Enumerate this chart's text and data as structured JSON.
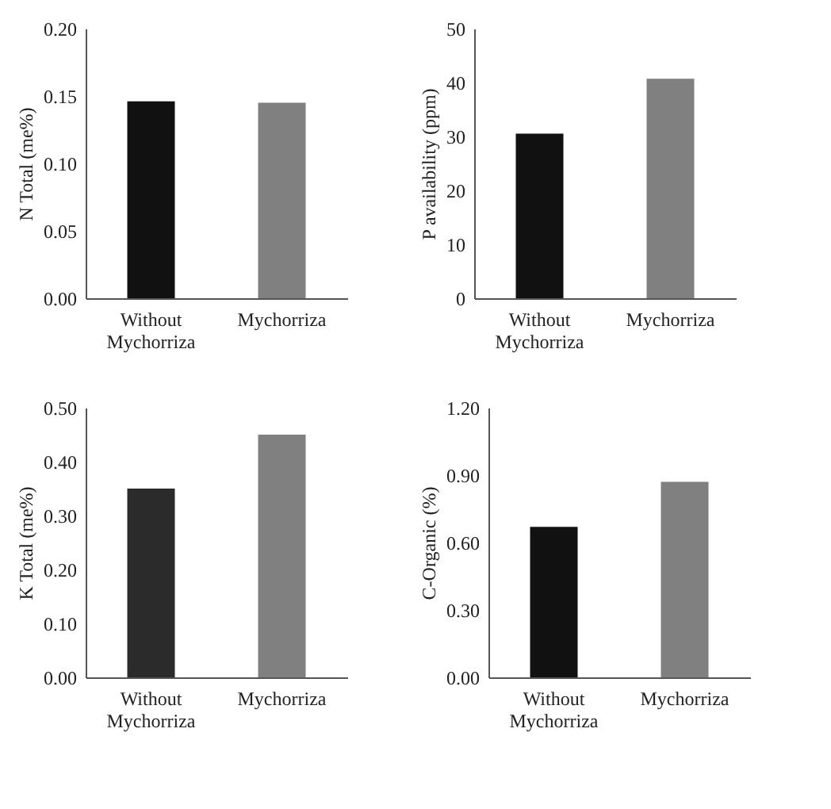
{
  "chart_data": [
    {
      "type": "bar",
      "ylabel": "N Total (me%)",
      "categories": [
        "Without Mychorriza",
        "Mychorriza"
      ],
      "values": [
        0.146,
        0.145
      ],
      "colors": [
        "#111111",
        "#808080"
      ],
      "ylim": [
        0,
        0.2
      ],
      "yticks": [
        {
          "value": 0,
          "label": "0.00"
        },
        {
          "value": 0.05,
          "label": "0.05"
        },
        {
          "value": 0.1,
          "label": "0.10"
        },
        {
          "value": 0.15,
          "label": "0.15"
        },
        {
          "value": 0.2,
          "label": "0.20"
        }
      ],
      "grid": false
    },
    {
      "type": "bar",
      "ylabel": "P availability (ppm)",
      "categories": [
        "Without Mychorriza",
        "Mychorriza"
      ],
      "values": [
        30.5,
        40.7
      ],
      "colors": [
        "#111111",
        "#808080"
      ],
      "ylim": [
        0,
        50
      ],
      "yticks": [
        0,
        10,
        20,
        30,
        40,
        50
      ],
      "grid": false
    },
    {
      "type": "bar",
      "ylabel": "K Total (me%)",
      "categories": [
        "Without Mychorriza",
        "Mychorriza"
      ],
      "values": [
        0.35,
        0.45
      ],
      "colors": [
        "#2b2b2b",
        "#808080"
      ],
      "ylim": [
        0,
        0.5
      ],
      "yticks": [
        {
          "value": 0,
          "label": "0.00"
        },
        {
          "value": 0.1,
          "label": "0.10"
        },
        {
          "value": 0.2,
          "label": "0.20"
        },
        {
          "value": 0.3,
          "label": "0.30"
        },
        {
          "value": 0.4,
          "label": "0.40"
        },
        {
          "value": 0.5,
          "label": "0.50"
        }
      ],
      "grid": false
    },
    {
      "type": "bar",
      "ylabel": "C-Organic (%)",
      "categories": [
        "Without Mychorriza",
        "Mychorriza"
      ],
      "values": [
        0.67,
        0.87
      ],
      "colors": [
        "#111111",
        "#808080"
      ],
      "ylim": [
        0,
        1.2
      ],
      "yticks": [
        {
          "value": 0,
          "label": "0.00"
        },
        {
          "value": 0.3,
          "label": "0.30"
        },
        {
          "value": 0.6,
          "label": "0.60"
        },
        {
          "value": 0.9,
          "label": "0.90"
        },
        {
          "value": 1.2,
          "label": "1.20"
        }
      ],
      "grid": false
    }
  ]
}
